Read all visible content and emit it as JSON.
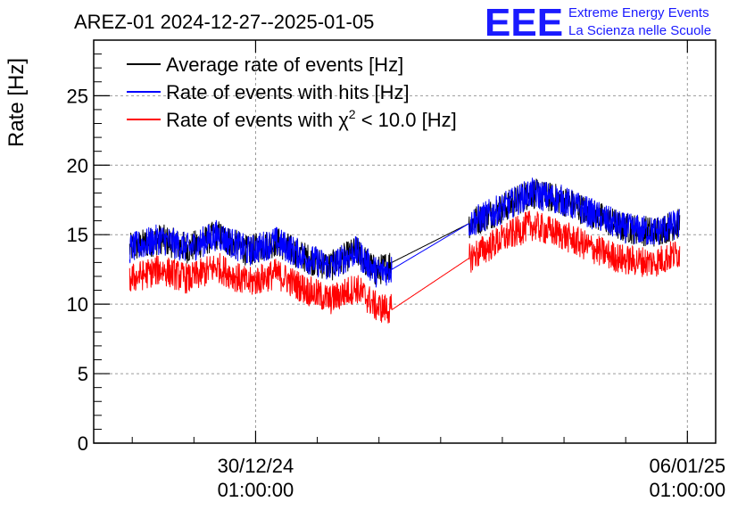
{
  "chart_data": {
    "type": "line",
    "title": "AREZ-01 2024-12-27--2025-01-05",
    "xlabel": "",
    "ylabel": "Rate [Hz]",
    "ylim": [
      0,
      29
    ],
    "yticks": [
      "0",
      "5",
      "10",
      "15",
      "20",
      "25"
    ],
    "xlim": [
      "2024-12-27T10:00",
      "2025-01-06T12:00"
    ],
    "xticks": [
      {
        "x": "2024-12-30T01:00:00",
        "date": "30/12/24",
        "time": "01:00:00"
      },
      {
        "x": "2025-01-06T01:00:00",
        "date": "06/01/25",
        "time": "01:00:00"
      }
    ],
    "grid": true,
    "legend_position": "top-left",
    "logo": {
      "mark": "EEE",
      "line1": "Extreme Energy Events",
      "line2": "La Scienza nelle Scuole",
      "color": "#1a1aff"
    },
    "series": [
      {
        "name": "Average rate of events [Hz]",
        "color": "#000000",
        "points": [
          [
            "2024-12-28T00:00",
            14.0
          ],
          [
            "2024-12-28T12:00",
            14.7
          ],
          [
            "2024-12-28T23:00",
            14.0
          ],
          [
            "2024-12-29T10:00",
            15.0
          ],
          [
            "2024-12-29T22:00",
            13.8
          ],
          [
            "2024-12-30T09:00",
            14.5
          ],
          [
            "2024-12-30T21:00",
            13.3
          ],
          [
            "2024-12-31T06:00",
            12.7
          ],
          [
            "2024-12-31T16:00",
            13.8
          ],
          [
            "2025-01-01T00:00",
            12.3
          ],
          [
            "2025-01-01T06:00",
            13.0
          ],
          [
            "2025-01-02T12:00",
            15.8
          ],
          [
            "2025-01-03T00:00",
            16.8
          ],
          [
            "2025-01-03T12:00",
            18.0
          ],
          [
            "2025-01-04T00:00",
            17.5
          ],
          [
            "2025-01-04T12:00",
            16.5
          ],
          [
            "2025-01-05T00:00",
            15.5
          ],
          [
            "2025-01-05T12:00",
            15.2
          ],
          [
            "2025-01-05T22:00",
            15.8
          ]
        ]
      },
      {
        "name": "Rate of events with hits [Hz]",
        "color": "#0000ff",
        "points": [
          [
            "2024-12-28T00:00",
            14.0
          ],
          [
            "2024-12-28T12:00",
            14.7
          ],
          [
            "2024-12-28T23:00",
            14.0
          ],
          [
            "2024-12-29T10:00",
            15.0
          ],
          [
            "2024-12-29T22:00",
            13.8
          ],
          [
            "2024-12-30T09:00",
            14.5
          ],
          [
            "2024-12-30T21:00",
            13.3
          ],
          [
            "2024-12-31T06:00",
            12.7
          ],
          [
            "2024-12-31T16:00",
            13.8
          ],
          [
            "2025-01-01T00:00",
            12.3
          ],
          [
            "2025-01-01T06:00",
            12.5
          ],
          [
            "2025-01-02T12:00",
            15.8
          ],
          [
            "2025-01-03T00:00",
            16.8
          ],
          [
            "2025-01-03T12:00",
            18.0
          ],
          [
            "2025-01-04T00:00",
            17.5
          ],
          [
            "2025-01-04T12:00",
            16.5
          ],
          [
            "2025-01-05T00:00",
            15.5
          ],
          [
            "2025-01-05T12:00",
            15.2
          ],
          [
            "2025-01-05T22:00",
            15.8
          ]
        ]
      },
      {
        "name": "Rate of events with χ² < 10.0 [Hz]",
        "legend_prefix": "Rate of events with ",
        "legend_symbol": "χ",
        "legend_sup": "2",
        "legend_suffix": " < 10.0 [Hz]",
        "color": "#ff0000",
        "points": [
          [
            "2024-12-28T00:00",
            11.8
          ],
          [
            "2024-12-28T12:00",
            12.5
          ],
          [
            "2024-12-28T23:00",
            11.8
          ],
          [
            "2024-12-29T10:00",
            12.7
          ],
          [
            "2024-12-29T22:00",
            11.5
          ],
          [
            "2024-12-30T09:00",
            12.2
          ],
          [
            "2024-12-30T21:00",
            11.0
          ],
          [
            "2024-12-31T06:00",
            10.3
          ],
          [
            "2024-12-31T16:00",
            11.2
          ],
          [
            "2025-01-01T00:00",
            9.8
          ],
          [
            "2025-01-01T06:00",
            9.6
          ],
          [
            "2025-01-02T12:00",
            13.3
          ],
          [
            "2025-01-03T00:00",
            14.6
          ],
          [
            "2025-01-03T12:00",
            15.7
          ],
          [
            "2025-01-04T00:00",
            15.0
          ],
          [
            "2025-01-04T12:00",
            14.0
          ],
          [
            "2025-01-05T00:00",
            13.2
          ],
          [
            "2025-01-05T12:00",
            13.0
          ],
          [
            "2025-01-05T22:00",
            13.7
          ]
        ]
      }
    ]
  }
}
